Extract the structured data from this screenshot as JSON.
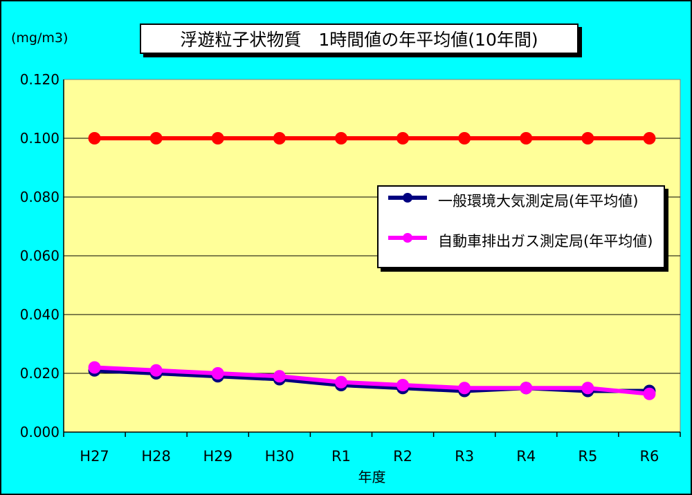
{
  "chart_data": {
    "type": "line",
    "title": "浮遊粒子状物質　1時間値の年平均値(10年間)",
    "unit_label": "(mg/m3)",
    "xlabel": "年度",
    "ylabel": "",
    "categories": [
      "H27",
      "H28",
      "H29",
      "H30",
      "R1",
      "R2",
      "R3",
      "R4",
      "R5",
      "R6"
    ],
    "ylim": [
      0,
      0.12
    ],
    "yticks": [
      "0.000",
      "0.020",
      "0.040",
      "0.060",
      "0.080",
      "0.100",
      "0.120"
    ],
    "grid": true,
    "legend_position": "right",
    "background_color": "#ffff99",
    "series": [
      {
        "name": "",
        "color": "#ff0000",
        "values": [
          0.1,
          0.1,
          0.1,
          0.1,
          0.1,
          0.1,
          0.1,
          0.1,
          0.1,
          0.1
        ]
      },
      {
        "name": "一般環境大気測定局(年平均値)",
        "color": "#000080",
        "values": [
          0.021,
          0.02,
          0.019,
          0.018,
          0.016,
          0.015,
          0.014,
          0.015,
          0.014,
          0.014
        ]
      },
      {
        "name": "自動車排出ガス測定局(年平均値)",
        "color": "#ff00ff",
        "values": [
          0.022,
          0.021,
          0.02,
          0.019,
          0.017,
          0.016,
          0.015,
          0.015,
          0.015,
          0.013
        ]
      }
    ]
  }
}
